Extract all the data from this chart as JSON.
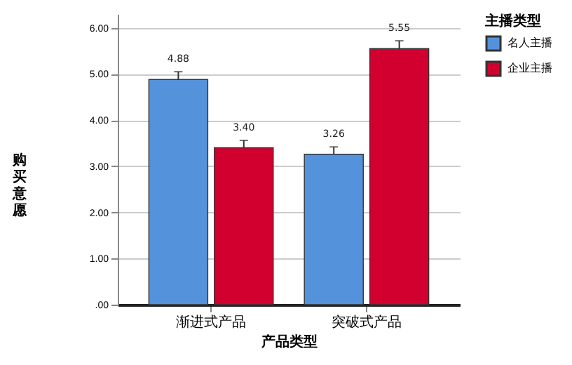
{
  "chart_data": {
    "type": "bar",
    "xlabel": "产品类型",
    "ylabel": "购买意愿",
    "legend_title": "主播类型",
    "categories": [
      "渐进式产品",
      "突破式产品"
    ],
    "series": [
      {
        "name": "名人主播",
        "color": "#5592dc",
        "values": [
          4.88,
          3.26
        ],
        "value_labels": [
          "4.88",
          "3.26"
        ],
        "errors": [
          0.17,
          0.16
        ]
      },
      {
        "name": "企业主播",
        "color": "#d2002e",
        "values": [
          3.4,
          5.55
        ],
        "value_labels": [
          "3.40",
          "5.55"
        ],
        "errors": [
          0.16,
          0.17
        ]
      }
    ],
    "ylim": [
      0,
      6.3
    ],
    "yticks": [
      {
        "value": 0,
        "label": ".00"
      },
      {
        "value": 1,
        "label": "1.00"
      },
      {
        "value": 2,
        "label": "2.00"
      },
      {
        "value": 3,
        "label": "3.00"
      },
      {
        "value": 4,
        "label": "4.00"
      },
      {
        "value": 5,
        "label": "5.00"
      },
      {
        "value": 6,
        "label": "6.00"
      }
    ],
    "grid": "y",
    "legend": "top right"
  }
}
